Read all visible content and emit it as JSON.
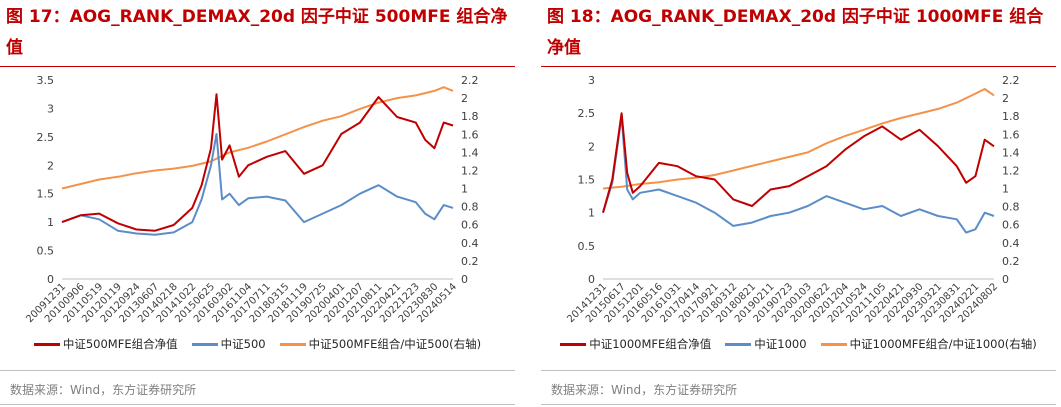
{
  "panels": [
    {
      "title": "图 17：AOG_RANK_DEMAX_20d 因子中证 500MFE 组合净值",
      "source": "数据来源：Wind，东方证券研究所",
      "colors": {
        "nav": "#c00000",
        "index": "#5b8dc9",
        "ratio": "#f4924a"
      }
    },
    {
      "title": "图 18：AOG_RANK_DEMAX_20d 因子中证 1000MFE 组合净值",
      "source": "数据来源：Wind，东方证券研究所",
      "colors": {
        "nav": "#c00000",
        "index": "#5b8dc9",
        "ratio": "#f4924a"
      }
    }
  ],
  "chart_data": [
    {
      "type": "line",
      "left_axis": {
        "ticks": [
          "0",
          "0.5",
          "1",
          "1.5",
          "2",
          "2.5",
          "3",
          "3.5"
        ],
        "ylim": [
          0,
          3.5
        ]
      },
      "right_axis": {
        "ticks": [
          "0",
          "0.2",
          "0.4",
          "0.6",
          "0.8",
          "1",
          "1.2",
          "1.4",
          "1.6",
          "1.8",
          "2",
          "2.2"
        ],
        "ylim": [
          0,
          2.2
        ]
      },
      "categories": [
        "20091231",
        "20100906",
        "20110519",
        "20120119",
        "20120924",
        "20130607",
        "20140218",
        "20141022",
        "20150625",
        "20160302",
        "20161104",
        "20170711",
        "20180315",
        "20181119",
        "20190725",
        "20200401",
        "20201207",
        "20210811",
        "20220421",
        "20221223",
        "20230830",
        "20240514"
      ],
      "grid": false,
      "legend_position": "bottom",
      "series": [
        {
          "name": "中证500MFE组合净值",
          "axis": "left",
          "color": "#c00000",
          "x": [
            0,
            1,
            2,
            3,
            4,
            5,
            6,
            7,
            7.5,
            8,
            8.3,
            8.6,
            9,
            9.5,
            10,
            11,
            12,
            13,
            14,
            15,
            16,
            17,
            18,
            19,
            19.5,
            20,
            20.5,
            21
          ],
          "values": [
            1.0,
            1.12,
            1.15,
            0.98,
            0.87,
            0.85,
            0.95,
            1.25,
            1.65,
            2.3,
            3.25,
            2.1,
            2.35,
            1.8,
            2.0,
            2.15,
            2.25,
            1.85,
            2.0,
            2.55,
            2.75,
            3.2,
            2.85,
            2.75,
            2.45,
            2.3,
            2.75,
            2.7
          ]
        },
        {
          "name": "中证500",
          "axis": "left",
          "color": "#5b8dc9",
          "x": [
            0,
            1,
            2,
            3,
            4,
            5,
            6,
            7,
            7.5,
            8,
            8.3,
            8.6,
            9,
            9.5,
            10,
            11,
            12,
            13,
            14,
            15,
            16,
            17,
            18,
            19,
            19.5,
            20,
            20.5,
            21
          ],
          "values": [
            1.0,
            1.12,
            1.05,
            0.85,
            0.8,
            0.78,
            0.82,
            1.0,
            1.4,
            2.0,
            2.55,
            1.4,
            1.5,
            1.3,
            1.42,
            1.45,
            1.38,
            1.0,
            1.15,
            1.3,
            1.5,
            1.65,
            1.45,
            1.35,
            1.15,
            1.05,
            1.3,
            1.25
          ]
        },
        {
          "name": "中证500MFE组合/中证500(右轴)",
          "axis": "right",
          "color": "#f4924a",
          "x": [
            0,
            1,
            2,
            3,
            4,
            5,
            6,
            7,
            8,
            9,
            10,
            11,
            12,
            13,
            14,
            15,
            16,
            17,
            18,
            19,
            20,
            20.5,
            21
          ],
          "values": [
            1.0,
            1.05,
            1.1,
            1.13,
            1.17,
            1.2,
            1.22,
            1.25,
            1.3,
            1.4,
            1.45,
            1.52,
            1.6,
            1.68,
            1.75,
            1.8,
            1.88,
            1.95,
            2.0,
            2.03,
            2.08,
            2.12,
            2.08
          ]
        }
      ]
    },
    {
      "type": "line",
      "left_axis": {
        "ticks": [
          "0",
          "0.5",
          "1",
          "1.5",
          "2",
          "2.5",
          "3"
        ],
        "ylim": [
          0,
          3
        ]
      },
      "right_axis": {
        "ticks": [
          "0",
          "0.2",
          "0.4",
          "0.6",
          "0.8",
          "1",
          "1.2",
          "1.4",
          "1.6",
          "1.8",
          "2",
          "2.2"
        ],
        "ylim": [
          0,
          2.2
        ]
      },
      "categories": [
        "20141231",
        "20150617",
        "20151201",
        "20160516",
        "20161031",
        "20170414",
        "20170921",
        "20180312",
        "20180821",
        "20190211",
        "20190723",
        "20200103",
        "20200622",
        "20201204",
        "20210524",
        "20211105",
        "20220421",
        "20220930",
        "20230321",
        "20230831",
        "20240221",
        "20240802"
      ],
      "grid": false,
      "legend_position": "bottom",
      "series": [
        {
          "name": "中证1000MFE组合净值",
          "axis": "left",
          "color": "#c00000",
          "x": [
            0,
            0.5,
            1,
            1.3,
            1.6,
            2,
            3,
            4,
            5,
            6,
            7,
            8,
            9,
            10,
            11,
            12,
            13,
            14,
            15,
            16,
            17,
            18,
            19,
            19.5,
            20,
            20.5,
            21
          ],
          "values": [
            1.0,
            1.5,
            2.5,
            1.6,
            1.3,
            1.4,
            1.75,
            1.7,
            1.55,
            1.5,
            1.2,
            1.1,
            1.35,
            1.4,
            1.55,
            1.7,
            1.95,
            2.15,
            2.3,
            2.1,
            2.25,
            2.0,
            1.7,
            1.45,
            1.55,
            2.1,
            2.0
          ]
        },
        {
          "name": "中证1000",
          "axis": "left",
          "color": "#5b8dc9",
          "x": [
            0,
            0.5,
            1,
            1.3,
            1.6,
            2,
            3,
            4,
            5,
            6,
            7,
            8,
            9,
            10,
            11,
            12,
            13,
            14,
            15,
            16,
            17,
            18,
            19,
            19.5,
            20,
            20.5,
            21
          ],
          "values": [
            1.0,
            1.45,
            2.45,
            1.35,
            1.2,
            1.3,
            1.35,
            1.25,
            1.15,
            1.0,
            0.8,
            0.85,
            0.95,
            1.0,
            1.1,
            1.25,
            1.15,
            1.05,
            1.1,
            0.95,
            1.05,
            0.95,
            0.9,
            0.7,
            0.75,
            1.0,
            0.95
          ]
        },
        {
          "name": "中证1000MFE组合/中证1000(右轴)",
          "axis": "right",
          "color": "#f4924a",
          "x": [
            0,
            1,
            2,
            3,
            4,
            5,
            6,
            7,
            8,
            9,
            10,
            11,
            12,
            13,
            14,
            15,
            16,
            17,
            18,
            19,
            20,
            20.5,
            21
          ],
          "values": [
            1.0,
            1.02,
            1.05,
            1.07,
            1.1,
            1.12,
            1.15,
            1.2,
            1.25,
            1.3,
            1.35,
            1.4,
            1.5,
            1.58,
            1.65,
            1.72,
            1.78,
            1.83,
            1.88,
            1.95,
            2.05,
            2.1,
            2.03
          ]
        }
      ]
    }
  ]
}
